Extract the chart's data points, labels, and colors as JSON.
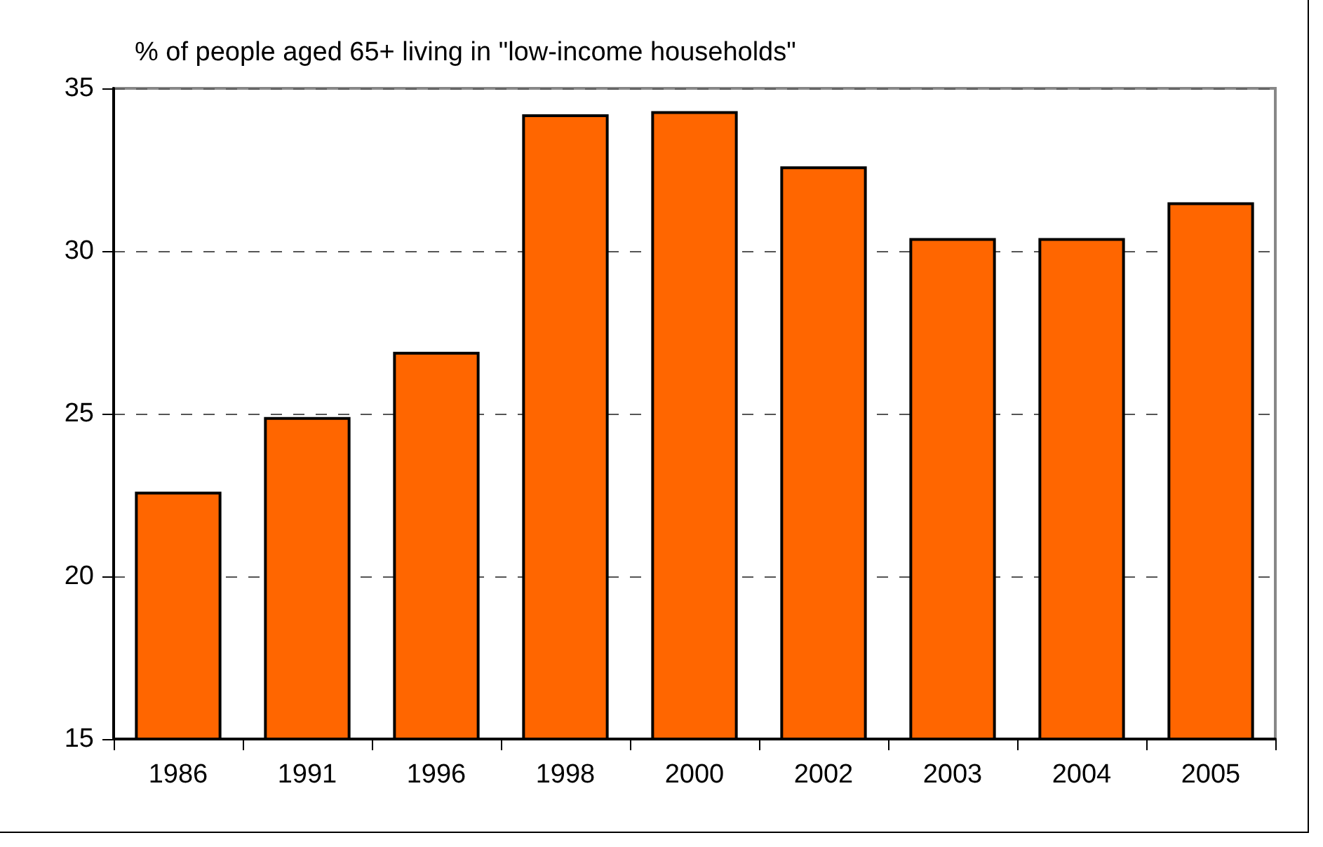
{
  "chart_data": {
    "type": "bar",
    "title": "% of people aged 65+ living in \"low-income households\"",
    "categories": [
      "1986",
      "1991",
      "1996",
      "1998",
      "2000",
      "2002",
      "2003",
      "2004",
      "2005"
    ],
    "values": [
      22.6,
      24.9,
      26.9,
      34.2,
      34.3,
      32.6,
      30.4,
      30.4,
      31.5
    ],
    "color": "#ff6600",
    "ylim": [
      15,
      35
    ],
    "yticks": [
      15,
      20,
      25,
      30,
      35
    ],
    "grid": "y"
  }
}
